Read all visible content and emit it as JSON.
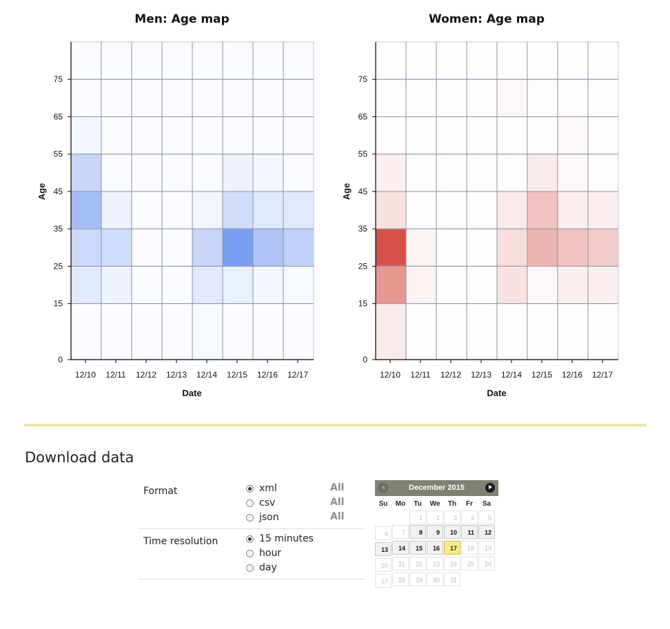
{
  "chart_data": [
    {
      "type": "heatmap",
      "title": "Men: Age map",
      "xlabel": "Date",
      "ylabel": "Age",
      "categories": [
        "12/10",
        "12/11",
        "12/12",
        "12/13",
        "12/14",
        "12/15",
        "12/16",
        "12/17"
      ],
      "y_ticks": [
        0,
        15,
        25,
        35,
        45,
        55,
        65,
        75
      ],
      "color": "#2a64e6",
      "rows": [
        {
          "band": "75+",
          "values": [
            0.02,
            0.02,
            0.02,
            0.02,
            0.02,
            0.02,
            0.02,
            0.02
          ]
        },
        {
          "band": "65-75",
          "values": [
            0.02,
            0.02,
            0.02,
            0.02,
            0.02,
            0.02,
            0.02,
            0.02
          ]
        },
        {
          "band": "55-65",
          "values": [
            0.06,
            0.02,
            0.02,
            0.02,
            0.02,
            0.02,
            0.02,
            0.02
          ]
        },
        {
          "band": "45-55",
          "values": [
            0.26,
            0.02,
            0.02,
            0.02,
            0.02,
            0.08,
            0.06,
            0.02
          ]
        },
        {
          "band": "35-45",
          "values": [
            0.42,
            0.08,
            0.02,
            0.02,
            0.06,
            0.22,
            0.14,
            0.14
          ]
        },
        {
          "band": "25-35",
          "values": [
            0.24,
            0.22,
            0.02,
            0.02,
            0.26,
            0.62,
            0.38,
            0.3
          ]
        },
        {
          "band": "15-25",
          "values": [
            0.14,
            0.08,
            0.02,
            0.02,
            0.14,
            0.1,
            0.06,
            0.04
          ]
        },
        {
          "band": "0-15",
          "values": [
            0.02,
            0.02,
            0.02,
            0.02,
            0.04,
            0.02,
            0.02,
            0.02
          ]
        }
      ]
    },
    {
      "type": "heatmap",
      "title": "Women: Age map",
      "xlabel": "Date",
      "ylabel": "Age",
      "categories": [
        "12/10",
        "12/11",
        "12/12",
        "12/13",
        "12/14",
        "12/15",
        "12/16",
        "12/17"
      ],
      "y_ticks": [
        0,
        15,
        25,
        35,
        45,
        55,
        65,
        75
      ],
      "color": "#cc2216",
      "rows": [
        {
          "band": "75+",
          "values": [
            0.01,
            0.01,
            0.01,
            0.01,
            0.01,
            0.01,
            0.01,
            0.01
          ]
        },
        {
          "band": "65-75",
          "values": [
            0.01,
            0.01,
            0.01,
            0.01,
            0.03,
            0.01,
            0.01,
            0.01
          ]
        },
        {
          "band": "55-65",
          "values": [
            0.01,
            0.01,
            0.01,
            0.01,
            0.01,
            0.01,
            0.03,
            0.01
          ]
        },
        {
          "band": "45-55",
          "values": [
            0.07,
            0.01,
            0.01,
            0.01,
            0.01,
            0.09,
            0.03,
            0.01
          ]
        },
        {
          "band": "35-45",
          "values": [
            0.13,
            0.01,
            0.01,
            0.01,
            0.09,
            0.27,
            0.07,
            0.07
          ]
        },
        {
          "band": "25-35",
          "values": [
            0.78,
            0.05,
            0.01,
            0.01,
            0.15,
            0.33,
            0.27,
            0.23
          ]
        },
        {
          "band": "15-25",
          "values": [
            0.47,
            0.05,
            0.01,
            0.01,
            0.13,
            0.03,
            0.07,
            0.07
          ]
        },
        {
          "band": "0-15",
          "values": [
            0.09,
            0.01,
            0.01,
            0.01,
            0.01,
            0.01,
            0.01,
            0.01
          ]
        }
      ]
    }
  ],
  "download": {
    "title": "Download data",
    "format": {
      "label": "Format",
      "options": [
        "xml",
        "csv",
        "json"
      ],
      "selected": "xml",
      "all_label": "All"
    },
    "time_resolution": {
      "label": "Time resolution",
      "options": [
        "15 minutes",
        "hour",
        "day"
      ],
      "selected": "15 minutes"
    }
  },
  "calendar": {
    "month_label": "December 2015",
    "weekdays": [
      "Su",
      "Mo",
      "Tu",
      "We",
      "Th",
      "Fr",
      "Sa"
    ],
    "first_weekday": 2,
    "days_in_month": 31,
    "active_days": [
      8,
      9,
      10,
      11,
      12,
      13,
      14,
      15,
      16,
      17
    ],
    "today": 17,
    "prev_icon": "chevron-left-icon",
    "next_icon": "chevron-right-icon"
  }
}
